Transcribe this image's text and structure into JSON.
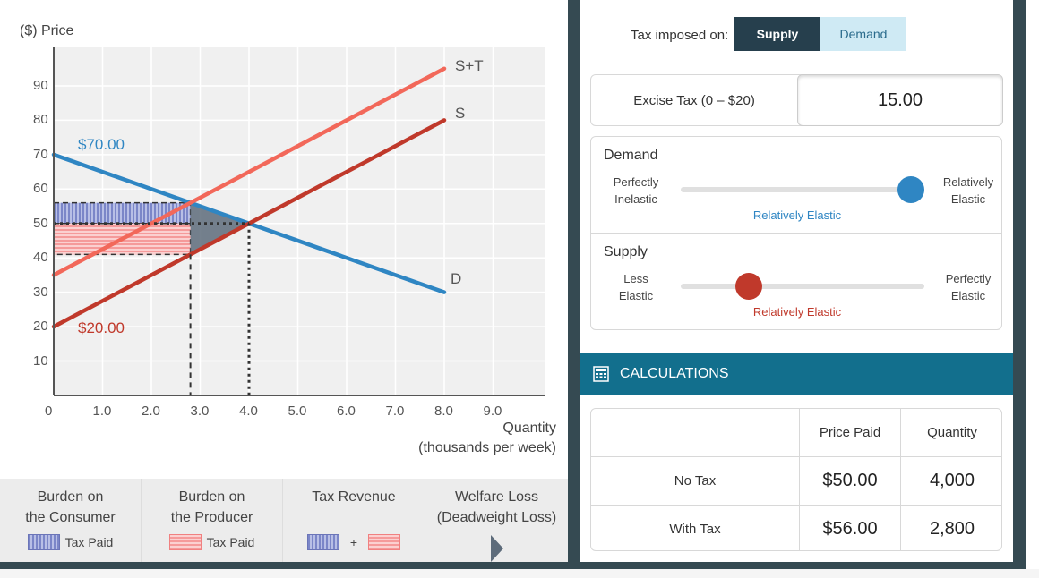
{
  "colors": {
    "demand": "#2f86c3",
    "supply": "#c0392b",
    "supply_tax": "#f2685a",
    "consumer_burden": "#7b86c8",
    "producer_burden": "#f59a9a",
    "deadweight": "#5d6b7a",
    "header_teal": "#126f8d",
    "dark_frame": "#354a52"
  },
  "chart": {
    "y_axis_label": "($) Price",
    "x_axis_label_line1": "Quantity",
    "x_axis_label_line2": "(thousands per week)",
    "line_labels": {
      "supply_tax": "S+T",
      "supply": "S",
      "demand": "D"
    },
    "annotations": {
      "demand_intercept": "$70.00",
      "supply_intercept": "$20.00"
    }
  },
  "chart_data": {
    "type": "line",
    "x_ticks": [
      "1.0",
      "2.0",
      "3.0",
      "4.0",
      "5.0",
      "6.0",
      "7.0",
      "8.0",
      "9.0"
    ],
    "x_origin_label": "0",
    "y_ticks": [
      "10",
      "20",
      "30",
      "40",
      "50",
      "60",
      "70",
      "80",
      "90"
    ],
    "xlim": [
      0,
      10
    ],
    "ylim": [
      0,
      100
    ],
    "series": [
      {
        "name": "D",
        "x": [
          0,
          8
        ],
        "y": [
          70,
          30
        ]
      },
      {
        "name": "S",
        "x": [
          0,
          8
        ],
        "y": [
          20,
          80
        ]
      },
      {
        "name": "S+T",
        "x": [
          0,
          8
        ],
        "y": [
          35,
          95
        ]
      }
    ],
    "equilibrium_no_tax": {
      "x": 4.0,
      "y": 50
    },
    "equilibrium_with_tax": {
      "x": 2.8,
      "y": 56,
      "producer_price": 41
    },
    "grid": true
  },
  "legend": {
    "consumer": {
      "line1": "Burden on",
      "line2": "the Consumer",
      "swatch_label": "Tax Paid"
    },
    "producer": {
      "line1": "Burden on",
      "line2": "the Producer",
      "swatch_label": "Tax Paid"
    },
    "revenue": {
      "title": "Tax Revenue",
      "plus": "+"
    },
    "welfare": {
      "line1": "Welfare Loss",
      "line2": "(Deadweight Loss)"
    }
  },
  "controls": {
    "tax_imposed_label": "Tax imposed on:",
    "supply_label": "Supply",
    "demand_label": "Demand",
    "selected": "Supply",
    "excise_label": "Excise Tax (0 – $20)",
    "excise_value": "15.00"
  },
  "demand_slider": {
    "title": "Demand",
    "left_line1": "Perfectly",
    "left_line2": "Inelastic",
    "right_line1": "Relatively",
    "right_line2": "Elastic",
    "value_label": "Relatively Elastic",
    "position": 1.0
  },
  "supply_slider": {
    "title": "Supply",
    "left_line1": "Less",
    "left_line2": "Elastic",
    "right_line1": "Perfectly",
    "right_line2": "Elastic",
    "value_label": "Relatively Elastic",
    "position": 0.25
  },
  "calculations": {
    "header": "CALCULATIONS",
    "col_price": "Price Paid",
    "col_quantity": "Quantity",
    "rows": [
      {
        "label": "No Tax",
        "price": "$50.00",
        "quantity": "4,000"
      },
      {
        "label": "With Tax",
        "price": "$56.00",
        "quantity": "2,800"
      }
    ]
  }
}
